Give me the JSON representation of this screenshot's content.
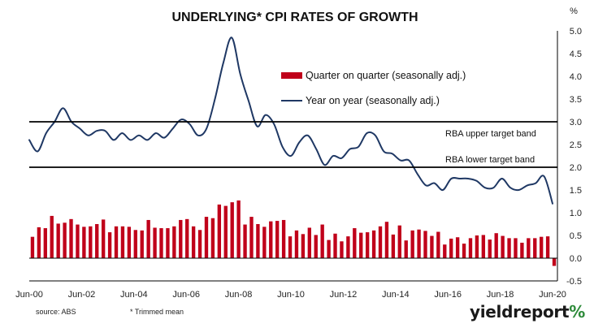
{
  "chart_data": {
    "type": "bar+line",
    "title": "UNDERLYING* CPI RATES OF GROWTH",
    "yunit": "%",
    "ylim": [
      -0.5,
      5.0
    ],
    "yticks": [
      "5.0",
      "4.5",
      "4.0",
      "3.5",
      "3.0",
      "2.5",
      "2.0",
      "1.5",
      "1.0",
      "0.5",
      "0.0",
      "-0.5"
    ],
    "xticks": [
      "Jun-00",
      "Jun-02",
      "Jun-04",
      "Jun-06",
      "Jun-08",
      "Jun-10",
      "Jun-12",
      "Jun-14",
      "Jun-16",
      "Jun-18",
      "Jun-20"
    ],
    "series": [
      {
        "name": "Quarter on quarter (seasonally adj.)",
        "kind": "bar",
        "color": "#c0001a",
        "values": [
          0.47,
          0.68,
          0.66,
          0.93,
          0.76,
          0.78,
          0.86,
          0.74,
          0.69,
          0.7,
          0.75,
          0.85,
          0.57,
          0.7,
          0.7,
          0.69,
          0.62,
          0.61,
          0.84,
          0.67,
          0.66,
          0.66,
          0.7,
          0.84,
          0.86,
          0.7,
          0.62,
          0.91,
          0.88,
          1.18,
          1.15,
          1.23,
          1.27,
          0.74,
          0.91,
          0.75,
          0.69,
          0.81,
          0.82,
          0.84,
          0.48,
          0.61,
          0.53,
          0.67,
          0.51,
          0.74,
          0.4,
          0.54,
          0.37,
          0.48,
          0.66,
          0.56,
          0.57,
          0.61,
          0.7,
          0.8,
          0.52,
          0.72,
          0.39,
          0.61,
          0.63,
          0.6,
          0.49,
          0.58,
          0.3,
          0.43,
          0.46,
          0.32,
          0.44,
          0.5,
          0.51,
          0.41,
          0.55,
          0.49,
          0.44,
          0.44,
          0.34,
          0.44,
          0.44,
          0.47,
          0.48,
          -0.17
        ]
      },
      {
        "name": "Year on year (seasonally adj.)",
        "kind": "line",
        "color": "#1f3864",
        "values": [
          2.6,
          2.35,
          2.75,
          3.0,
          3.3,
          3.0,
          2.85,
          2.7,
          2.8,
          2.8,
          2.6,
          2.75,
          2.6,
          2.7,
          2.6,
          2.75,
          2.65,
          2.85,
          3.05,
          2.95,
          2.7,
          2.85,
          3.5,
          4.3,
          4.85,
          4.05,
          3.45,
          2.9,
          3.15,
          2.95,
          2.45,
          2.25,
          2.55,
          2.7,
          2.4,
          2.05,
          2.25,
          2.2,
          2.4,
          2.45,
          2.75,
          2.7,
          2.35,
          2.3,
          2.15,
          2.15,
          1.85,
          1.6,
          1.65,
          1.5,
          1.75,
          1.75,
          1.75,
          1.7,
          1.55,
          1.55,
          1.75,
          1.55,
          1.5,
          1.6,
          1.65,
          1.8,
          1.2
        ]
      }
    ],
    "reference_lines": [
      {
        "label": "RBA upper target band",
        "value": 3.0
      },
      {
        "label": "RBA lower target band",
        "value": 2.0
      }
    ],
    "footnotes": {
      "source": "source: ABS",
      "note": "* Trimmed mean"
    },
    "brand": {
      "text": "yieldreport",
      "mark": "%"
    }
  }
}
